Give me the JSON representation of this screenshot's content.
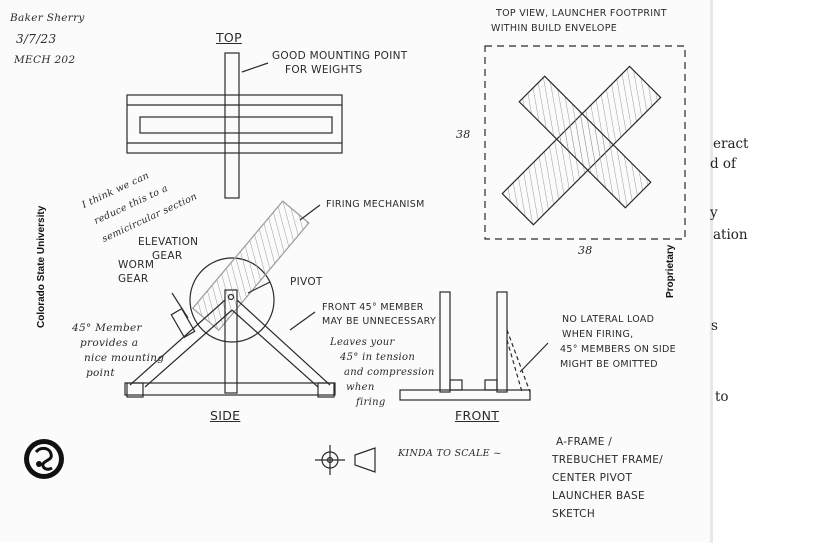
{
  "author_block": {
    "name": "Baker Sherry",
    "date": "3/7/23",
    "course": "MECH 202"
  },
  "side_labels": {
    "left_vertical": "Colorado State University",
    "right_vertical": "Proprietary"
  },
  "views": {
    "top_heading": "TOP",
    "side_heading": "SIDE",
    "front_heading": "FRONT",
    "top_view_note_line1": "TOP VIEW, LAUNCHER FOOTPRINT",
    "top_view_note_line2": "WITHIN BUILD ENVELOPE"
  },
  "annotations": {
    "mounting_line1": "GOOD MOUNTING POINT",
    "mounting_line2": "FOR WEIGHTS",
    "semicircle_line1": "I think we can",
    "semicircle_line2": "reduce this to a",
    "semicircle_line3": "semicircular section",
    "firing_mechanism": "FIRING MECHANISM",
    "elevation_line1": "ELEVATION",
    "elevation_line2": "GEAR",
    "pivot": "PIVOT",
    "worm_line1": "WORM",
    "worm_line2": "GEAR",
    "member_note_line1": "45° Member",
    "member_note_line2": "provides a",
    "member_note_line3": "nice mounting",
    "member_note_line4": "point",
    "front_member_line1": "FRONT 45° MEMBER",
    "front_member_line2": "MAY BE UNNECESSARY",
    "leaves_line1": "Leaves your",
    "leaves_line2": "45° in tension",
    "leaves_line3": "and compression",
    "leaves_line4": "when",
    "leaves_line5": "firing",
    "lateral_line1": "NO LATERAL LOAD",
    "lateral_line2": "WHEN FIRING,",
    "lateral_line3": "45° MEMBERS ON SIDE",
    "lateral_line4": "MIGHT BE OMITTED",
    "dim_height": "38",
    "dim_width": "38",
    "scale_note": "KINDA TO SCALE ~",
    "title_line1": "A-FRAME /",
    "title_line2": "TREBUCHET FRAME/",
    "title_line3": "CENTER PIVOT",
    "title_line4": "LAUNCHER BASE",
    "title_line5": "SKETCH"
  },
  "right_fragments": {
    "f1": "eract",
    "f2": "d of",
    "f3": "y",
    "f4": "ation",
    "f5": "s",
    "f6": "to"
  },
  "colors": {
    "ink": "#2a2a2a",
    "paper": "#fbfbfb",
    "hatch": "#9a9a9a"
  }
}
